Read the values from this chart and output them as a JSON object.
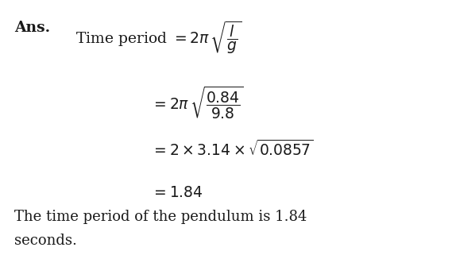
{
  "background_color": "#ffffff",
  "text_color": "#1a1a1a",
  "fig_width": 5.69,
  "fig_height": 3.21,
  "dpi": 100,
  "ans_label": "Ans.",
  "conclusion1": "The time period of the pendulum is 1.84",
  "conclusion2": "seconds."
}
